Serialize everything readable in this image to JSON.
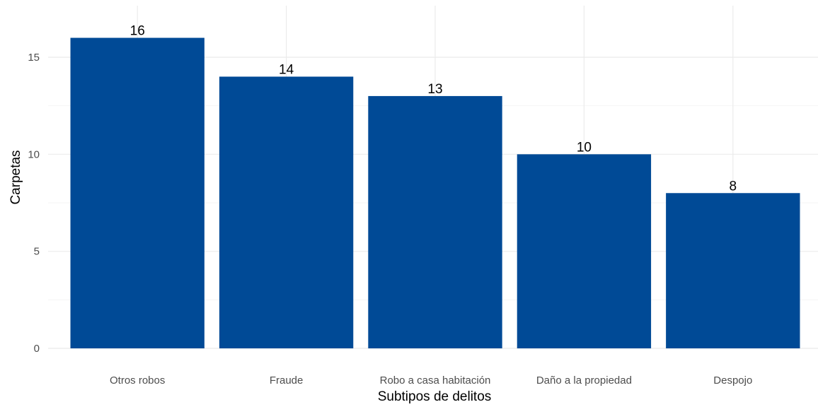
{
  "chart_data": {
    "type": "bar",
    "categories": [
      "Otros robos",
      "Fraude",
      "Robo a casa habitación",
      "Daño a la propiedad",
      "Despojo"
    ],
    "values": [
      16,
      14,
      13,
      10,
      8
    ],
    "data_labels": [
      "16",
      "14",
      "13",
      "10",
      "8"
    ],
    "xlabel": "Subtipos de delitos",
    "ylabel": "Carpetas",
    "ylim": [
      0,
      17
    ],
    "y_ticks": [
      0,
      5,
      10,
      15
    ],
    "grid": true,
    "bar_color": "#004A96"
  }
}
